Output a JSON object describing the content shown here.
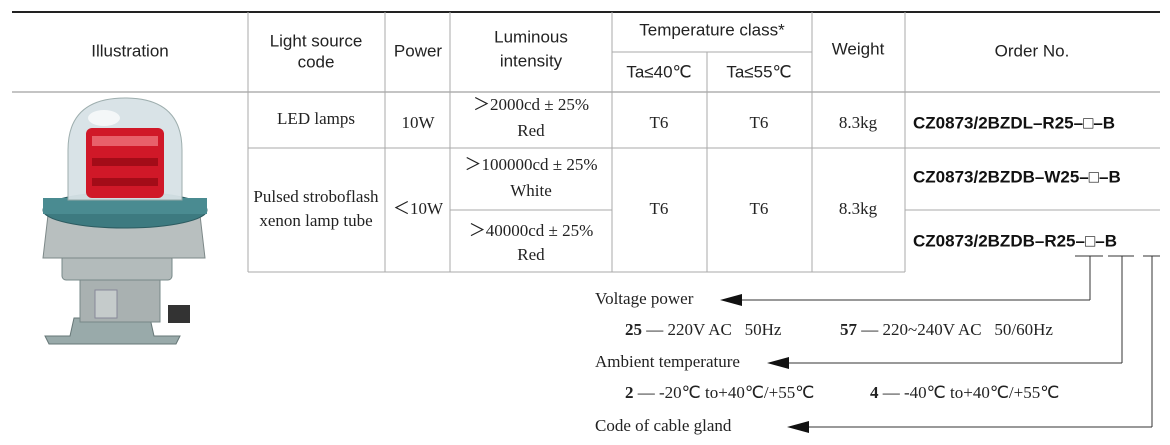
{
  "table": {
    "header": {
      "illustration": "Illustration",
      "light_source_code": [
        "Light source",
        "code"
      ],
      "power": "Power",
      "luminous_intensity": [
        "Luminous",
        "intensity"
      ],
      "temperature_class": "Temperature class*",
      "ta40": "Ta≤40℃",
      "ta55": "Ta≤55℃",
      "weight": "Weight",
      "order_no": "Order No."
    },
    "rows": [
      {
        "light_source": [
          "LED lamps"
        ],
        "power": "10W",
        "intensity": [
          [
            "＞2000cd ± 25%",
            "Red"
          ]
        ],
        "ta40": "T6",
        "ta55": "T6",
        "weight": "8.3kg",
        "order_no": [
          "CZ0873/2BZDL–R25–□–B"
        ]
      },
      {
        "light_source": [
          "Pulsed stroboflash",
          "xenon lamp tube"
        ],
        "power": "＜10W",
        "intensity": [
          [
            "＞100000cd ± 25%",
            "White"
          ],
          [
            "＞40000cd ± 25%",
            "Red"
          ]
        ],
        "ta40": "T6",
        "ta55": "T6",
        "weight": "8.3kg",
        "order_no": [
          "CZ0873/2BZDB–W25–□–B",
          "CZ0873/2BZDB–R25–□–B"
        ]
      }
    ]
  },
  "legend": [
    {
      "label": "Voltage power",
      "options": [
        {
          "code": "25",
          "text": "— 220V AC   50Hz"
        },
        {
          "code": "57",
          "text": "— 220~240V AC   50/60Hz"
        }
      ]
    },
    {
      "label": "Ambient temperature",
      "options": [
        {
          "code": "2",
          "text": "— -20℃ to+40℃/+55℃"
        },
        {
          "code": "4",
          "text": "— -40℃ to+40℃/+55℃"
        }
      ]
    },
    {
      "label": "Code of cable gland",
      "options": []
    }
  ]
}
